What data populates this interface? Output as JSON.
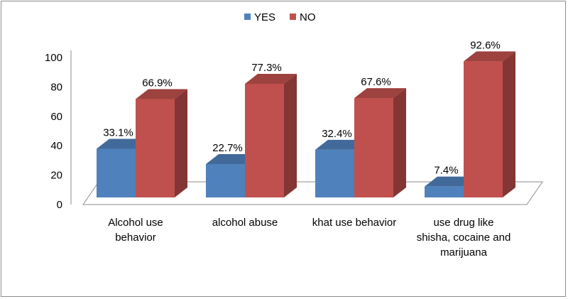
{
  "chart_data": {
    "type": "bar",
    "categories": [
      [
        "Alcohol use",
        "behavior"
      ],
      [
        "alcohol abuse"
      ],
      [
        "khat use behavior"
      ],
      [
        "use drug like",
        "shisha, cocaine and",
        "marijuana"
      ]
    ],
    "series": [
      {
        "name": "YES",
        "color": "#4f81bd",
        "values": [
          33.1,
          22.7,
          32.4,
          7.4
        ],
        "labels": [
          "33.1%",
          "22.7%",
          "32.4%",
          "7.4%"
        ]
      },
      {
        "name": "NO",
        "color": "#c0504d",
        "values": [
          66.9,
          77.3,
          67.6,
          92.6
        ],
        "labels": [
          "66.9%",
          "77.3%",
          "67.6%",
          "92.6%"
        ]
      }
    ],
    "yticks": [
      "0",
      "20",
      "40",
      "60",
      "80",
      "100"
    ],
    "ylim": [
      0,
      100
    ],
    "legend_position": "top",
    "title": "",
    "xlabel": "",
    "ylabel": ""
  }
}
